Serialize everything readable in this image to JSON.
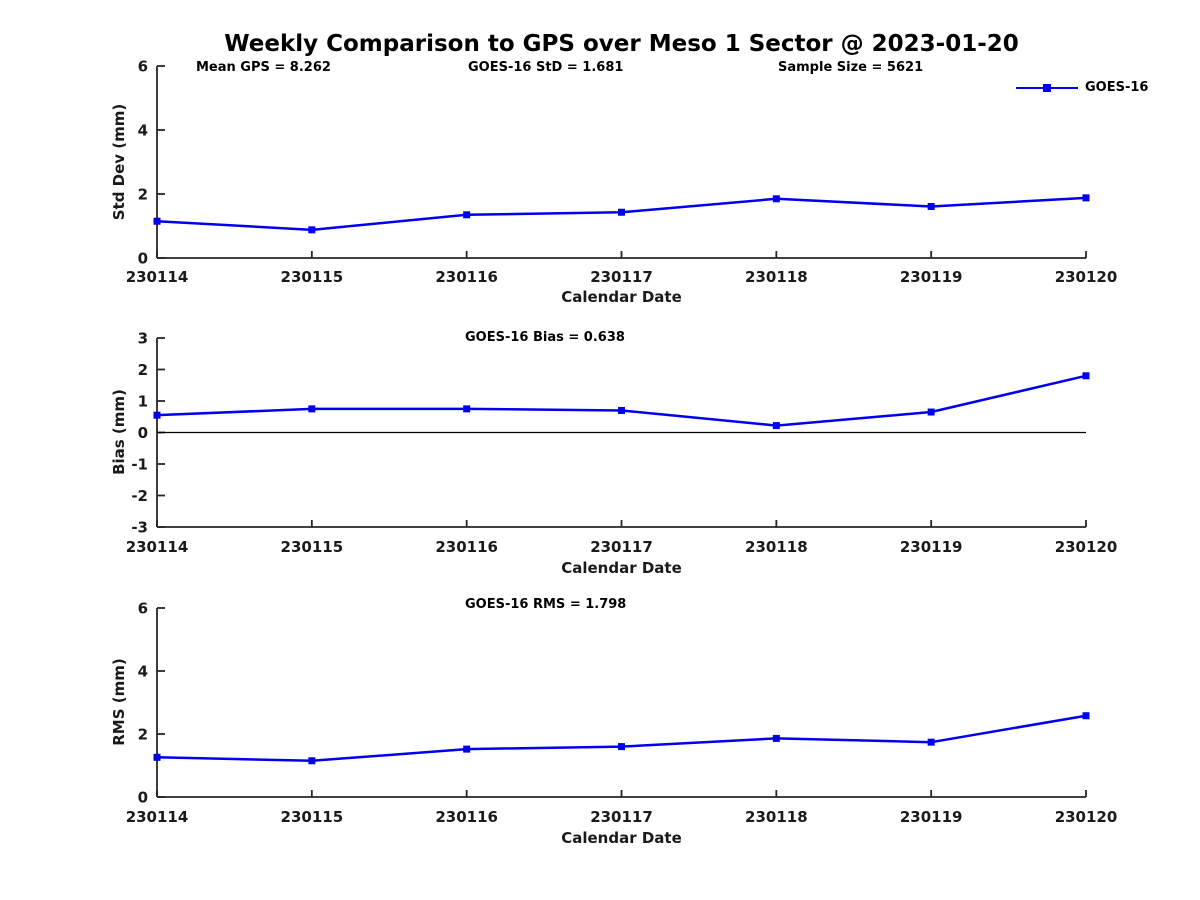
{
  "header": {
    "title": "Weekly Comparison to GPS over Meso 1 Sector @ 2023-01-20"
  },
  "annotations": {
    "mean_gps": "Mean GPS = 8.262",
    "goes16_std": "GOES-16 StD = 1.681",
    "sample_size": "Sample Size = 5621"
  },
  "legend": {
    "label": "GOES-16",
    "line_color": "#0000ee"
  },
  "colors": {
    "series": "#0000ee",
    "axis": "#262626",
    "tick_text": "#1a1a1a",
    "zero_line": "#000000"
  },
  "chart_data": [
    {
      "type": "line",
      "series_name": "GOES-16",
      "ylabel": "Std Dev (mm)",
      "xlabel": "Calendar Date",
      "categories": [
        "230114",
        "230115",
        "230116",
        "230117",
        "230118",
        "230119",
        "230120"
      ],
      "values": [
        1.15,
        0.88,
        1.35,
        1.43,
        1.85,
        1.61,
        1.88
      ],
      "ylim": [
        0,
        6
      ],
      "yticks": [
        0,
        2,
        4,
        6
      ],
      "zero_line": false,
      "annotation": "",
      "grid": false,
      "legend_position": "top-right"
    },
    {
      "type": "line",
      "series_name": "GOES-16",
      "ylabel": "Bias (mm)",
      "xlabel": "Calendar Date",
      "categories": [
        "230114",
        "230115",
        "230116",
        "230117",
        "230118",
        "230119",
        "230120"
      ],
      "values": [
        0.55,
        0.75,
        0.75,
        0.7,
        0.22,
        0.65,
        1.8
      ],
      "ylim": [
        -3,
        3
      ],
      "yticks": [
        3,
        2,
        1,
        0,
        -1,
        -2,
        -3
      ],
      "zero_line": true,
      "annotation": "GOES-16 Bias  = 0.638",
      "grid": false
    },
    {
      "type": "line",
      "series_name": "GOES-16",
      "ylabel": "RMS (mm)",
      "xlabel": "Calendar Date",
      "categories": [
        "230114",
        "230115",
        "230116",
        "230117",
        "230118",
        "230119",
        "230120"
      ],
      "values": [
        1.26,
        1.15,
        1.52,
        1.6,
        1.86,
        1.74,
        2.58
      ],
      "ylim": [
        0,
        6
      ],
      "yticks": [
        0,
        2,
        4,
        6
      ],
      "zero_line": false,
      "annotation": "GOES-16 RMS = 1.798",
      "grid": false
    }
  ]
}
